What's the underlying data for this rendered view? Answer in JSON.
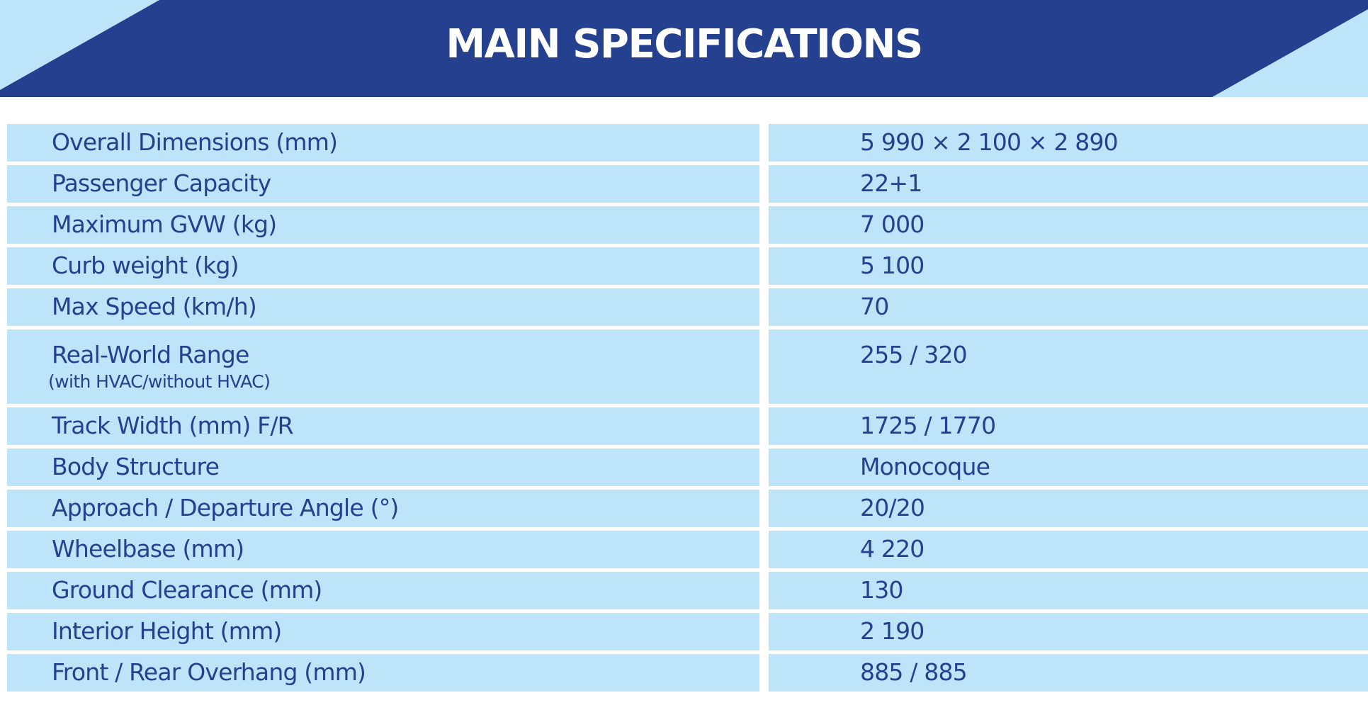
{
  "header": {
    "title": "MAIN SPECIFICATIONS"
  },
  "colors": {
    "header_background": "#25408f",
    "accent_light_blue": "#bde4f8",
    "text": "#25408f",
    "title_text": "#ffffff"
  },
  "specs": [
    {
      "label": "Overall Dimensions (mm)",
      "value": "5 990 × 2 100 × 2 890"
    },
    {
      "label": "Passenger Capacity",
      "value": "22+1"
    },
    {
      "label": "Maximum GVW (kg)",
      "value": "7 000"
    },
    {
      "label": "Curb weight (kg)",
      "value": "5 100"
    },
    {
      "label": "Max Speed (km/h)",
      "value": "70"
    },
    {
      "label": "Real-World Range",
      "sublabel": "(with HVAC/without HVAC)",
      "value": "255 / 320"
    },
    {
      "label": "Track Width (mm) F/R",
      "value": "1725 / 1770"
    },
    {
      "label": "Body Structure",
      "value": "Monocoque"
    },
    {
      "label": "Approach / Departure Angle (°)",
      "value": "20/20"
    },
    {
      "label": "Wheelbase (mm)",
      "value": "4 220"
    },
    {
      "label": "Ground Clearance (mm)",
      "value": "130"
    },
    {
      "label": "Interior Height (mm)",
      "value": "2 190"
    },
    {
      "label": "Front / Rear Overhang (mm)",
      "value": "885 / 885"
    }
  ]
}
